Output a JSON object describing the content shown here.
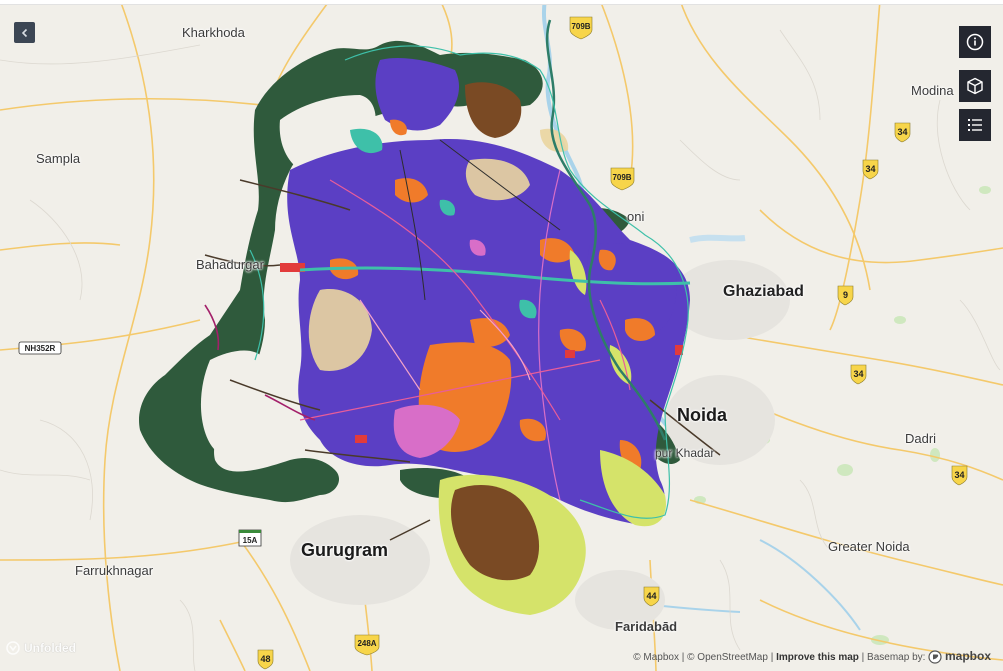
{
  "map": {
    "places": [
      {
        "id": "kharkhoda",
        "name": "Kharkhoda"
      },
      {
        "id": "sampla",
        "name": "Sampla"
      },
      {
        "id": "bahadurgarh",
        "name": "Bahadurgar"
      },
      {
        "id": "loni",
        "name": "oni"
      },
      {
        "id": "ghaziabad",
        "name": "Ghaziabad"
      },
      {
        "id": "noida",
        "name": "Noida"
      },
      {
        "id": "khadar",
        "name": "pur Khadar"
      },
      {
        "id": "dadri",
        "name": "Dadri"
      },
      {
        "id": "gurugram",
        "name": "Gurugram"
      },
      {
        "id": "farrukhnagar",
        "name": "Farrukhnagar"
      },
      {
        "id": "greater_noida",
        "name": "Greater Noida"
      },
      {
        "id": "faridabad",
        "name": "Faridabād"
      },
      {
        "id": "modinagar",
        "name": "Modina"
      }
    ],
    "road_shields": [
      {
        "id": "709b_top",
        "label": "709B"
      },
      {
        "id": "709b_mid",
        "label": "709B"
      },
      {
        "id": "34_a",
        "label": "34"
      },
      {
        "id": "34_b",
        "label": "34"
      },
      {
        "id": "34_c",
        "label": "34"
      },
      {
        "id": "34_d",
        "label": "34"
      },
      {
        "id": "9",
        "label": "9"
      },
      {
        "id": "nh352r",
        "label": "NH352R"
      },
      {
        "id": "15a",
        "label": "15A"
      },
      {
        "id": "44",
        "label": "44"
      },
      {
        "id": "248a",
        "label": "248A"
      },
      {
        "id": "48",
        "label": "48"
      }
    ],
    "landuse_colors": {
      "residential": "#5b3fc4",
      "commercial": "#f07b2a",
      "forest": "#2f5a3c",
      "agriculture": "#d5e36a",
      "industrial": "#7a4a24",
      "public": "#d86ec8",
      "green": "#3ec0a9",
      "transport": "#e23b3b",
      "mixed": "#e3c57a"
    }
  },
  "controls": {
    "collapse": "chevron-left-icon",
    "info": "info-icon",
    "view3d": "cube-icon",
    "legend": "list-icon"
  },
  "watermark": {
    "text": "Unfolded"
  },
  "attribution": {
    "mapbox": "© Mapbox",
    "sep1": "|",
    "osm": "© OpenStreetMap",
    "sep2": "|",
    "improve": "Improve this map",
    "basemap": "| Basemap by:",
    "logo": "mapbox"
  }
}
